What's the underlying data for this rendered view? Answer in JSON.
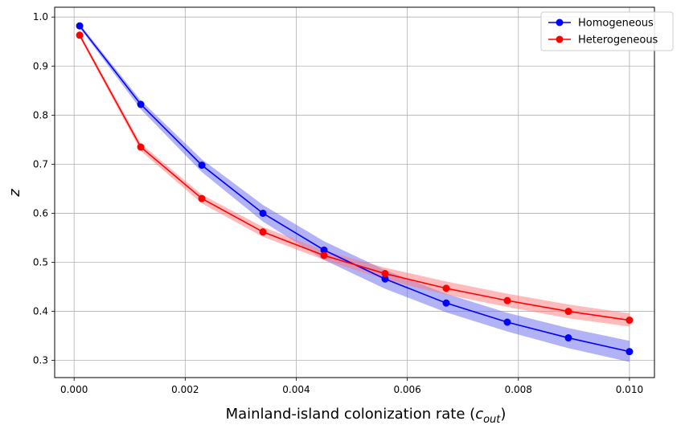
{
  "chart_data": {
    "type": "line",
    "xlabel_main": "Mainland-island colonization rate (",
    "xlabel_var": "c",
    "xlabel_sub": "out",
    "xlabel_close": ")",
    "ylabel": "z",
    "xlim": [
      -0.00035,
      0.01045
    ],
    "ylim": [
      0.265,
      1.02
    ],
    "xticks": [
      0.0,
      0.002,
      0.004,
      0.006,
      0.008,
      0.01
    ],
    "xtick_labels": [
      "0.000",
      "0.002",
      "0.004",
      "0.006",
      "0.008",
      "0.010"
    ],
    "yticks": [
      0.3,
      0.4,
      0.5,
      0.6,
      0.7,
      0.8,
      0.9,
      1.0
    ],
    "ytick_labels": [
      "0.3",
      "0.4",
      "0.5",
      "0.6",
      "0.7",
      "0.8",
      "0.9",
      "1.0"
    ],
    "grid": true,
    "legend_position": "top-right",
    "x": [
      0.0001,
      0.0012,
      0.0023,
      0.0034,
      0.0045,
      0.0056,
      0.0067,
      0.0078,
      0.0089,
      0.01
    ],
    "series": [
      {
        "name": "Homogeneous",
        "color": "#0000ff",
        "band_color": "#6666ee",
        "values": [
          0.982,
          0.822,
          0.698,
          0.6,
          0.525,
          0.466,
          0.417,
          0.378,
          0.346,
          0.318
        ],
        "lower": [
          0.978,
          0.812,
          0.684,
          0.583,
          0.505,
          0.446,
          0.398,
          0.359,
          0.325,
          0.297
        ],
        "upper": [
          0.986,
          0.83,
          0.71,
          0.617,
          0.543,
          0.484,
          0.436,
          0.397,
          0.366,
          0.34
        ]
      },
      {
        "name": "Heterogeneous",
        "color": "#ff0000",
        "band_color": "#ff7777",
        "values": [
          0.963,
          0.735,
          0.63,
          0.562,
          0.514,
          0.477,
          0.447,
          0.422,
          0.4,
          0.382
        ],
        "lower": [
          0.958,
          0.727,
          0.62,
          0.552,
          0.505,
          0.465,
          0.434,
          0.409,
          0.386,
          0.369
        ],
        "upper": [
          0.967,
          0.742,
          0.638,
          0.572,
          0.524,
          0.489,
          0.461,
          0.436,
          0.414,
          0.396
        ]
      }
    ]
  }
}
